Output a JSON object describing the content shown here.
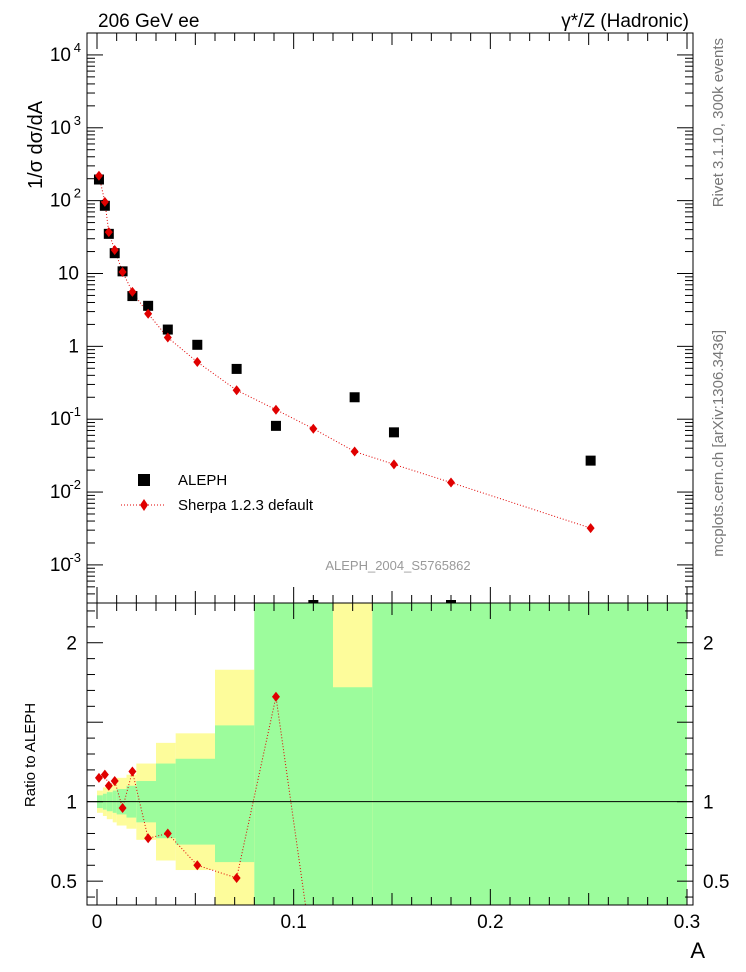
{
  "header": {
    "energy_label": "206 GeV ee",
    "process_label": "γ*/Z (Hadronic)"
  },
  "side_labels": {
    "rivet": "Rivet 3.1.10,  300k events",
    "mcplots": "mcplots.cern.ch [arXiv:1306.3436]"
  },
  "analysis_id": "ALEPH_2004_S5765862",
  "chart_data": [
    {
      "type": "scatter",
      "title": "206 GeV ee — γ*/Z (Hadronic)",
      "ylabel": "1/σ  dσ/dA",
      "xlabel": "A",
      "yscale": "log",
      "xlim": [
        0,
        0.3
      ],
      "ylim": [
        0.0003,
        20000
      ],
      "y_ticks": [
        {
          "v": 0.001,
          "base": "10",
          "exp": "-3"
        },
        {
          "v": 0.01,
          "base": "10",
          "exp": "-2"
        },
        {
          "v": 0.1,
          "base": "10",
          "exp": "-1"
        },
        {
          "v": 1,
          "base": "1",
          "exp": ""
        },
        {
          "v": 10,
          "base": "10",
          "exp": ""
        },
        {
          "v": 100,
          "base": "10",
          "exp": "2"
        },
        {
          "v": 1000,
          "base": "10",
          "exp": "3"
        },
        {
          "v": 10000,
          "base": "10",
          "exp": "4"
        }
      ],
      "legend": [
        "ALEPH",
        "Sherpa 1.2.3 default"
      ],
      "series": [
        {
          "name": "ALEPH",
          "marker": "square",
          "color": "#000000",
          "x": [
            0.001,
            0.004,
            0.006,
            0.009,
            0.013,
            0.018,
            0.026,
            0.036,
            0.051,
            0.071,
            0.091,
            0.11,
            0.131,
            0.151,
            0.18,
            0.251
          ],
          "y": [
            195,
            85,
            35,
            19,
            10.7,
            4.9,
            3.6,
            1.7,
            1.05,
            0.49,
            0.081,
            0.00025,
            0.2,
            0.066,
            0.00025,
            0.027
          ]
        },
        {
          "name": "Sherpa 1.2.3 default",
          "marker": "diamond",
          "color": "#e00000",
          "x": [
            0.001,
            0.004,
            0.006,
            0.009,
            0.013,
            0.018,
            0.026,
            0.036,
            0.051,
            0.071,
            0.091,
            0.11,
            0.131,
            0.151,
            0.18,
            0.251
          ],
          "y": [
            220,
            96,
            37,
            21,
            10.5,
            5.6,
            2.8,
            1.32,
            0.61,
            0.25,
            0.135,
            0.074,
            0.036,
            0.024,
            0.0135,
            0.0032
          ]
        }
      ]
    },
    {
      "type": "line",
      "ylabel": "Ratio to ALEPH",
      "xlabel": "A",
      "xlim": [
        0,
        0.3
      ],
      "ylim": [
        0.35,
        2.25
      ],
      "x_ticks": [
        {
          "v": 0,
          "label": "0"
        },
        {
          "v": 0.1,
          "label": "0.1"
        },
        {
          "v": 0.2,
          "label": "0.2"
        },
        {
          "v": 0.3,
          "label": "0.3"
        }
      ],
      "y_ticks": [
        {
          "v": 0.5,
          "label": "0.5"
        },
        {
          "v": 1,
          "label": "1"
        },
        {
          "v": 2,
          "label": "2"
        }
      ],
      "reference_line": 1,
      "bands": [
        {
          "x0": 0.0,
          "x1": 0.003,
          "stat_lo": 0.96,
          "stat_hi": 1.04,
          "tot_lo": 0.93,
          "tot_hi": 1.07
        },
        {
          "x0": 0.003,
          "x1": 0.005,
          "stat_lo": 0.95,
          "stat_hi": 1.05,
          "tot_lo": 0.91,
          "tot_hi": 1.09
        },
        {
          "x0": 0.005,
          "x1": 0.008,
          "stat_lo": 0.94,
          "stat_hi": 1.06,
          "tot_lo": 0.89,
          "tot_hi": 1.11
        },
        {
          "x0": 0.008,
          "x1": 0.01,
          "stat_lo": 0.93,
          "stat_hi": 1.07,
          "tot_lo": 0.87,
          "tot_hi": 1.13
        },
        {
          "x0": 0.01,
          "x1": 0.015,
          "stat_lo": 0.92,
          "stat_hi": 1.08,
          "tot_lo": 0.85,
          "tot_hi": 1.15
        },
        {
          "x0": 0.015,
          "x1": 0.02,
          "stat_lo": 0.9,
          "stat_hi": 1.1,
          "tot_lo": 0.83,
          "tot_hi": 1.17
        },
        {
          "x0": 0.02,
          "x1": 0.03,
          "stat_lo": 0.87,
          "stat_hi": 1.13,
          "tot_lo": 0.76,
          "tot_hi": 1.24
        },
        {
          "x0": 0.03,
          "x1": 0.04,
          "stat_lo": 0.77,
          "stat_hi": 1.24,
          "tot_lo": 0.63,
          "tot_hi": 1.37
        },
        {
          "x0": 0.04,
          "x1": 0.06,
          "stat_lo": 0.73,
          "stat_hi": 1.27,
          "tot_lo": 0.57,
          "tot_hi": 1.43
        },
        {
          "x0": 0.06,
          "x1": 0.08,
          "stat_lo": 0.62,
          "stat_hi": 1.48,
          "tot_lo": 0.35,
          "tot_hi": 1.83
        },
        {
          "x0": 0.08,
          "x1": 0.12,
          "stat_lo": 0.35,
          "stat_hi": 2.25,
          "tot_lo": 0.35,
          "tot_hi": 2.25
        },
        {
          "x0": 0.12,
          "x1": 0.14,
          "stat_lo": 0.35,
          "stat_hi": 1.72,
          "tot_lo": 0.35,
          "tot_hi": 2.25
        },
        {
          "x0": 0.14,
          "x1": 0.3,
          "stat_lo": 0.35,
          "stat_hi": 2.25,
          "tot_lo": 0.35,
          "tot_hi": 2.25
        }
      ],
      "band_colors": {
        "stat": "#9cfc9c",
        "total": "#fdfc9b"
      },
      "series": [
        {
          "name": "Sherpa 1.2.3 default",
          "color": "#e00000",
          "x": [
            0.001,
            0.004,
            0.006,
            0.009,
            0.013,
            0.018,
            0.026,
            0.036,
            0.051,
            0.071,
            0.091
          ],
          "y": [
            1.15,
            1.17,
            1.1,
            1.13,
            0.96,
            1.19,
            0.77,
            0.8,
            0.6,
            0.52,
            1.66
          ],
          "offscale_to": {
            "x": 0.106,
            "y": 0.35
          }
        }
      ]
    }
  ]
}
